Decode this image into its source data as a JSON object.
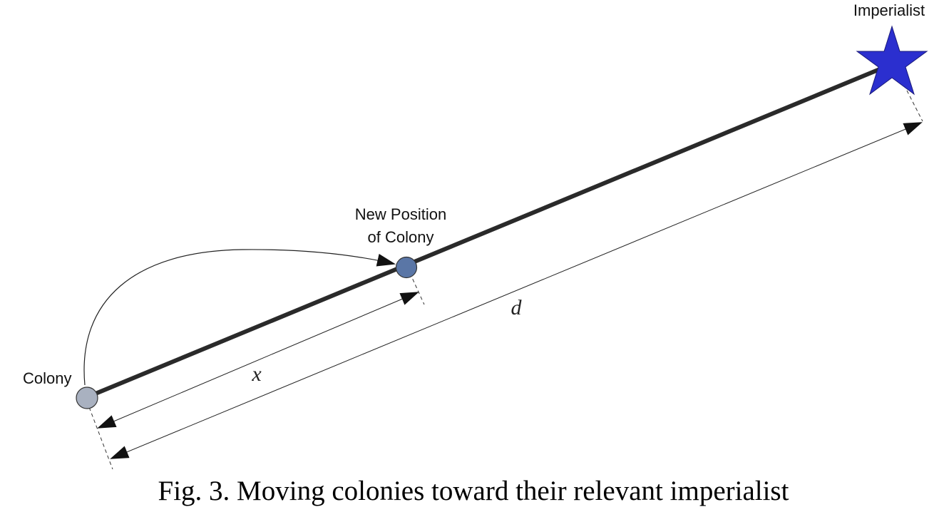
{
  "diagram": {
    "labels": {
      "colony": "Colony",
      "new_position_line1": "New Position",
      "new_position_line2": "of Colony",
      "imperialist": "Imperialist",
      "distance_moved": "x",
      "distance_total": "d"
    },
    "caption": "Fig. 3. Moving colonies toward their relevant imperialist",
    "colors": {
      "path_line": "#2a2a2a",
      "colony_fill": "#a9b1c0",
      "new_colony_fill": "#5a76a6",
      "imperialist_fill": "#2b2fcf",
      "outline": "#333333"
    },
    "icons": {
      "colony": "circle-icon",
      "new_colony": "circle-icon",
      "imperialist": "star-icon"
    }
  }
}
